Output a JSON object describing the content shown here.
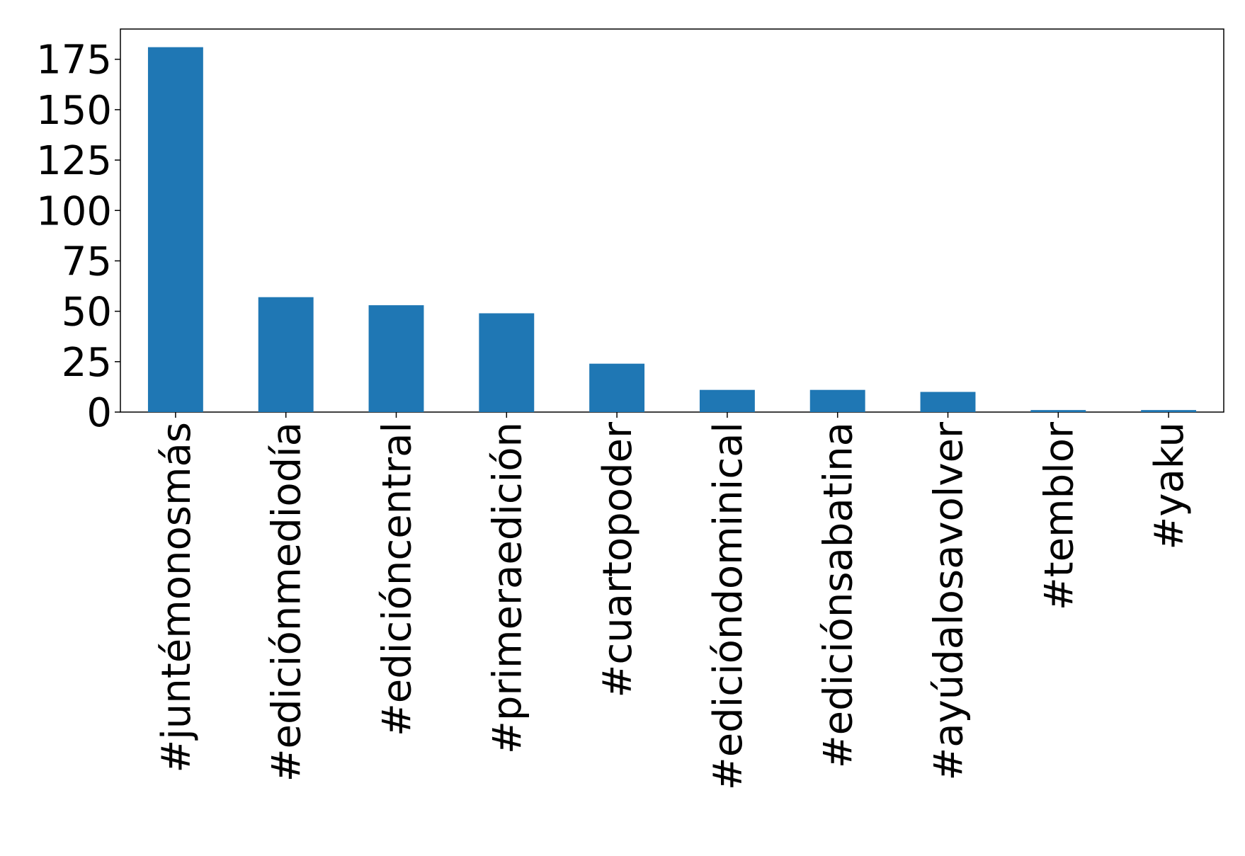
{
  "chart_data": {
    "type": "bar",
    "categories": [
      "#juntémonosmás",
      "#ediciónmediodía",
      "#edicióncentral",
      "#primeraedición",
      "#cuartopoder",
      "#edicióndominical",
      "#ediciónsabatina",
      "#ayúdalosavolver",
      "#temblor",
      "#yaku"
    ],
    "values": [
      181,
      57,
      53,
      49,
      24,
      11,
      11,
      10,
      1,
      1
    ],
    "color": "#1f77b4",
    "ylim": [
      0,
      190
    ],
    "yticks": [
      0,
      25,
      50,
      75,
      100,
      125,
      150,
      175
    ],
    "grid": false
  }
}
